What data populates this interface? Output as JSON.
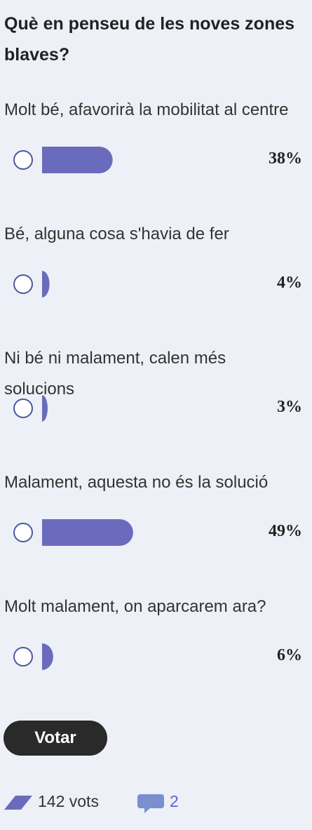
{
  "poll": {
    "title": "Què en penseu de les noves zones blaves?",
    "options": [
      {
        "label": "Molt bé, afavorirà la mobilitat al centre",
        "value": 38,
        "value_label": "38%"
      },
      {
        "label": "Bé, alguna cosa s'havia de fer",
        "value": 4,
        "value_label": "4%"
      },
      {
        "label": "Ni bé ni malament, calen més solucions",
        "value": 3,
        "value_label": "3%"
      },
      {
        "label": "Malament, aquesta no és la solució",
        "value": 49,
        "value_label": "49%"
      },
      {
        "label": "Molt malament, on aparcarem ara?",
        "value": 6,
        "value_label": "6%"
      }
    ],
    "button": "Votar",
    "votes": "142 vots",
    "comments": 2,
    "bar_color": "#6b6bbd"
  }
}
